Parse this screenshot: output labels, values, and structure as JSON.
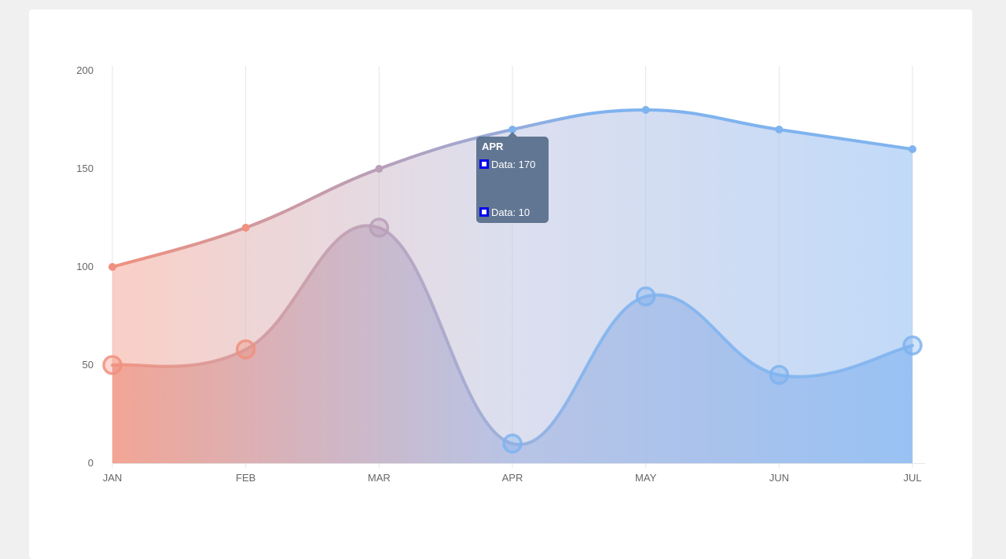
{
  "chart_data": {
    "type": "area",
    "categories": [
      "JAN",
      "FEB",
      "MAR",
      "APR",
      "MAY",
      "JUN",
      "JUL"
    ],
    "ylim": [
      0,
      200
    ],
    "yticks": [
      0,
      50,
      100,
      150,
      200
    ],
    "grid": "vertical",
    "series": [
      {
        "values": [
          100,
          120,
          150,
          170,
          180,
          170,
          160
        ],
        "marker": "small"
      },
      {
        "values": [
          50,
          58,
          120,
          10,
          85,
          45,
          60
        ],
        "marker": "large"
      }
    ],
    "colors": {
      "start": "#f0907e",
      "end": "#7fb3ef",
      "fill_start": "#f5a898",
      "fill_end": "#9fc6f5",
      "grid": "#e6e6e6"
    },
    "tooltip": {
      "title": "APR",
      "rows": [
        "Data: 170",
        "Data: 10"
      ],
      "swatch_color": "#0000ee"
    }
  }
}
